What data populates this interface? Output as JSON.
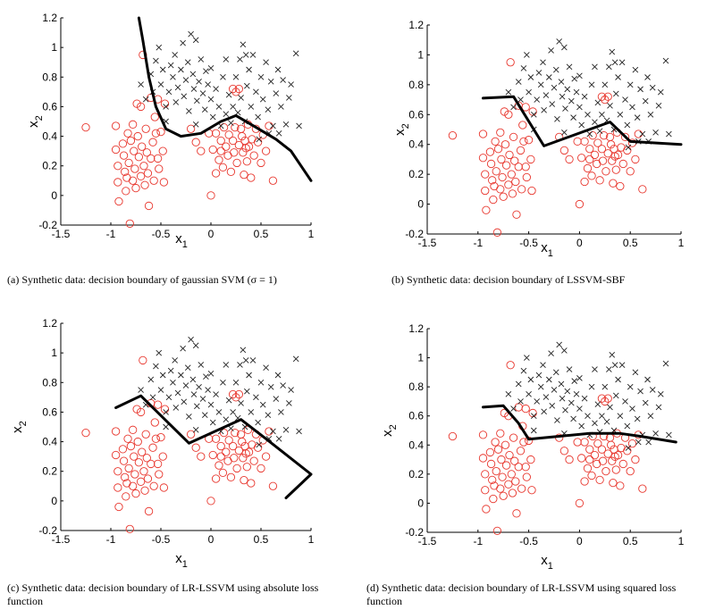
{
  "chart_data": [
    {
      "type": "scatter",
      "caption": {
        "label": "(a)",
        "text": "Synthetic data: decision boundary of gaussian SVM (σ = 1)"
      },
      "xlabel": "x",
      "xlabel_sub": "1",
      "ylabel": "x",
      "ylabel_sub": "2",
      "xlim": [
        -1.5,
        1
      ],
      "ylim": [
        -0.2,
        1.2
      ],
      "xticks": [
        "-1.5",
        "-1",
        "-0.5",
        "0",
        "0.5",
        "1"
      ],
      "yticks": [
        "-0.2",
        "0",
        "0.2",
        "0.4",
        "0.6",
        "0.8",
        "1",
        "1.2"
      ],
      "boundary": [
        [
          -0.72,
          1.2
        ],
        [
          -0.68,
          1.05
        ],
        [
          -0.62,
          0.8
        ],
        [
          -0.55,
          0.6
        ],
        [
          -0.45,
          0.45
        ],
        [
          -0.3,
          0.4
        ],
        [
          -0.1,
          0.42
        ],
        [
          0.1,
          0.5
        ],
        [
          0.25,
          0.54
        ],
        [
          0.45,
          0.46
        ],
        [
          0.65,
          0.38
        ],
        [
          0.8,
          0.3
        ],
        [
          0.9,
          0.2
        ],
        [
          1.0,
          0.1
        ]
      ]
    },
    {
      "type": "scatter",
      "caption": {
        "label": "(b)",
        "text": "Synthetic data: decision boundary of LSSVM-SBF"
      },
      "xlabel": "x",
      "xlabel_sub": "1",
      "ylabel": "x",
      "ylabel_sub": "2",
      "xlim": [
        -1.5,
        1
      ],
      "ylim": [
        -0.2,
        1.2
      ],
      "xticks": [
        "-1.5",
        "-1",
        "-0.5",
        "0",
        "0.5",
        "1"
      ],
      "yticks": [
        "-0.2",
        "0",
        "0.2",
        "0.4",
        "0.6",
        "0.8",
        "1",
        "1.2"
      ],
      "boundary": [
        [
          -0.95,
          0.71
        ],
        [
          -0.65,
          0.72
        ],
        [
          -0.35,
          0.39
        ],
        [
          0.3,
          0.55
        ],
        [
          0.5,
          0.42
        ],
        [
          1.0,
          0.4
        ]
      ]
    },
    {
      "type": "scatter",
      "caption": {
        "label": "(c)",
        "text": "Synthetic data: decision boundary of LR-LSSVM using absolute loss function"
      },
      "xlabel": "x",
      "xlabel_sub": "1",
      "ylabel": "x",
      "ylabel_sub": "2",
      "xlim": [
        -1.5,
        1
      ],
      "ylim": [
        -0.2,
        1.2
      ],
      "xticks": [
        "-1.5",
        "-1",
        "-0.5",
        "0",
        "0.5",
        "1"
      ],
      "yticks": [
        "-0.2",
        "0",
        "0.2",
        "0.4",
        "0.6",
        "0.8",
        "1",
        "1.2"
      ],
      "boundary": [
        [
          -0.95,
          0.63
        ],
        [
          -0.7,
          0.71
        ],
        [
          -0.22,
          0.39
        ],
        [
          0.3,
          0.55
        ],
        [
          0.55,
          0.42
        ],
        [
          1.0,
          0.18
        ],
        [
          0.75,
          0.02
        ]
      ]
    },
    {
      "type": "scatter",
      "caption": {
        "label": "(d)",
        "text": "Synthetic data: decision boundary of LR-LSSVM using squared loss function"
      },
      "xlabel": "x",
      "xlabel_sub": "1",
      "ylabel": "x",
      "ylabel_sub": "2",
      "xlim": [
        -1.5,
        1
      ],
      "ylim": [
        -0.2,
        1.2
      ],
      "xticks": [
        "-1.5",
        "-1",
        "-0.5",
        "0",
        "0.5",
        "1"
      ],
      "yticks": [
        "-0.2",
        "0",
        "0.2",
        "0.4",
        "0.6",
        "0.8",
        "1",
        "1.2"
      ],
      "boundary": [
        [
          -0.95,
          0.66
        ],
        [
          -0.75,
          0.67
        ],
        [
          -0.6,
          0.55
        ],
        [
          -0.5,
          0.44
        ],
        [
          -0.2,
          0.46
        ],
        [
          0.1,
          0.48
        ],
        [
          0.4,
          0.48
        ],
        [
          0.6,
          0.46
        ],
        [
          0.95,
          0.42
        ]
      ]
    }
  ],
  "dataset": {
    "class_neg_label": "circle (red)",
    "class_pos_label": "x (black)",
    "circles": [
      [
        -1.25,
        0.46
      ],
      [
        -0.95,
        0.47
      ],
      [
        -0.95,
        0.31
      ],
      [
        -0.93,
        0.2
      ],
      [
        -0.93,
        0.09
      ],
      [
        -0.92,
        -0.04
      ],
      [
        -0.88,
        0.35
      ],
      [
        -0.87,
        0.27
      ],
      [
        -0.86,
        0.16
      ],
      [
        -0.85,
        0.03
      ],
      [
        -0.84,
        0.12
      ],
      [
        -0.83,
        0.42
      ],
      [
        -0.82,
        0.22
      ],
      [
        -0.81,
        -0.19
      ],
      [
        -0.8,
        0.37
      ],
      [
        -0.78,
        0.48
      ],
      [
        -0.78,
        0.1
      ],
      [
        -0.77,
        0.3
      ],
      [
        -0.76,
        0.18
      ],
      [
        -0.75,
        0.05
      ],
      [
        -0.74,
        0.62
      ],
      [
        -0.73,
        0.4
      ],
      [
        -0.72,
        0.26
      ],
      [
        -0.7,
        0.13
      ],
      [
        -0.69,
        0.33
      ],
      [
        -0.68,
        0.95
      ],
      [
        -0.67,
        0.2
      ],
      [
        -0.66,
        0.07
      ],
      [
        -0.65,
        0.45
      ],
      [
        -0.64,
        0.29
      ],
      [
        -0.63,
        0.15
      ],
      [
        -0.62,
        -0.07
      ],
      [
        -0.6,
        0.25
      ],
      [
        -0.58,
        0.36
      ],
      [
        -0.57,
        0.1
      ],
      [
        -0.56,
        0.53
      ],
      [
        -0.55,
        0.42
      ],
      [
        -0.53,
        0.25
      ],
      [
        -0.52,
        0.18
      ],
      [
        -0.5,
        0.43
      ],
      [
        -0.48,
        0.3
      ],
      [
        -0.47,
        0.09
      ],
      [
        -0.6,
        0.66
      ],
      [
        -0.53,
        0.65
      ],
      [
        -0.46,
        0.62
      ],
      [
        -0.7,
        0.6
      ],
      [
        0.0,
        0.0
      ],
      [
        -0.02,
        0.42
      ],
      [
        0.02,
        0.31
      ],
      [
        0.05,
        0.42
      ],
      [
        0.08,
        0.24
      ],
      [
        0.1,
        0.37
      ],
      [
        0.12,
        0.19
      ],
      [
        0.13,
        0.46
      ],
      [
        0.15,
        0.33
      ],
      [
        0.17,
        0.27
      ],
      [
        0.18,
        0.41
      ],
      [
        0.2,
        0.16
      ],
      [
        0.22,
        0.37
      ],
      [
        0.23,
        0.29
      ],
      [
        0.24,
        0.46
      ],
      [
        0.25,
        0.7
      ],
      [
        0.26,
        0.22
      ],
      [
        0.28,
        0.34
      ],
      [
        0.3,
        0.45
      ],
      [
        0.31,
        0.4
      ],
      [
        0.32,
        0.29
      ],
      [
        0.33,
        0.14
      ],
      [
        0.34,
        0.37
      ],
      [
        0.35,
        0.32
      ],
      [
        0.36,
        0.23
      ],
      [
        0.37,
        0.48
      ],
      [
        0.38,
        0.33
      ],
      [
        0.4,
        0.12
      ],
      [
        0.41,
        0.38
      ],
      [
        0.43,
        0.27
      ],
      [
        0.45,
        0.45
      ],
      [
        0.47,
        0.36
      ],
      [
        0.5,
        0.22
      ],
      [
        0.52,
        0.41
      ],
      [
        0.55,
        0.3
      ],
      [
        0.58,
        0.47
      ],
      [
        0.62,
        0.1
      ],
      [
        0.22,
        0.72
      ],
      [
        0.28,
        0.72
      ],
      [
        0.1,
        0.3
      ],
      [
        0.05,
        0.15
      ],
      [
        -0.15,
        0.36
      ],
      [
        -0.1,
        0.3
      ],
      [
        -0.2,
        0.45
      ]
    ],
    "crosses": [
      [
        -0.6,
        0.82
      ],
      [
        -0.55,
        0.91
      ],
      [
        -0.52,
        1.0
      ],
      [
        -0.5,
        0.75
      ],
      [
        -0.48,
        0.85
      ],
      [
        -0.45,
        0.6
      ],
      [
        -0.42,
        0.7
      ],
      [
        -0.4,
        0.88
      ],
      [
        -0.38,
        0.8
      ],
      [
        -0.36,
        0.95
      ],
      [
        -0.35,
        0.63
      ],
      [
        -0.33,
        0.73
      ],
      [
        -0.3,
        0.85
      ],
      [
        -0.28,
        1.03
      ],
      [
        -0.27,
        0.67
      ],
      [
        -0.25,
        0.78
      ],
      [
        -0.23,
        0.9
      ],
      [
        -0.22,
        0.57
      ],
      [
        -0.2,
        1.09
      ],
      [
        -0.18,
        0.82
      ],
      [
        -0.17,
        0.72
      ],
      [
        -0.15,
        1.05
      ],
      [
        -0.14,
        0.64
      ],
      [
        -0.12,
        0.77
      ],
      [
        -0.1,
        0.92
      ],
      [
        -0.08,
        0.69
      ],
      [
        -0.06,
        0.58
      ],
      [
        -0.05,
        0.84
      ],
      [
        -0.03,
        0.75
      ],
      [
        0.0,
        0.65
      ],
      [
        0.02,
        0.53
      ],
      [
        0.05,
        0.72
      ],
      [
        0.08,
        0.6
      ],
      [
        0.1,
        0.47
      ],
      [
        0.12,
        0.8
      ],
      [
        0.15,
        0.55
      ],
      [
        0.18,
        0.68
      ],
      [
        0.2,
        0.49
      ],
      [
        0.22,
        0.6
      ],
      [
        0.25,
        0.8
      ],
      [
        0.27,
        0.56
      ],
      [
        0.29,
        0.92
      ],
      [
        0.3,
        0.66
      ],
      [
        0.32,
        1.02
      ],
      [
        0.34,
        0.5
      ],
      [
        0.36,
        0.74
      ],
      [
        0.38,
        0.85
      ],
      [
        0.4,
        0.6
      ],
      [
        0.42,
        0.95
      ],
      [
        0.45,
        0.7
      ],
      [
        0.47,
        0.53
      ],
      [
        0.5,
        0.8
      ],
      [
        0.52,
        0.65
      ],
      [
        0.55,
        0.9
      ],
      [
        0.57,
        0.58
      ],
      [
        0.6,
        0.77
      ],
      [
        0.62,
        0.47
      ],
      [
        0.65,
        0.69
      ],
      [
        0.67,
        0.85
      ],
      [
        0.7,
        0.6
      ],
      [
        0.72,
        0.78
      ],
      [
        0.75,
        0.48
      ],
      [
        0.78,
        0.66
      ],
      [
        0.8,
        0.75
      ],
      [
        0.85,
        0.96
      ],
      [
        0.88,
        0.47
      ],
      [
        -0.7,
        0.75
      ],
      [
        -0.65,
        0.65
      ],
      [
        -0.58,
        0.7
      ],
      [
        -0.45,
        0.5
      ],
      [
        -0.15,
        0.48
      ],
      [
        0.0,
        0.86
      ],
      [
        0.15,
        0.92
      ],
      [
        0.35,
        0.95
      ],
      [
        0.58,
        0.42
      ],
      [
        0.68,
        0.42
      ],
      [
        0.48,
        0.38
      ]
    ]
  }
}
